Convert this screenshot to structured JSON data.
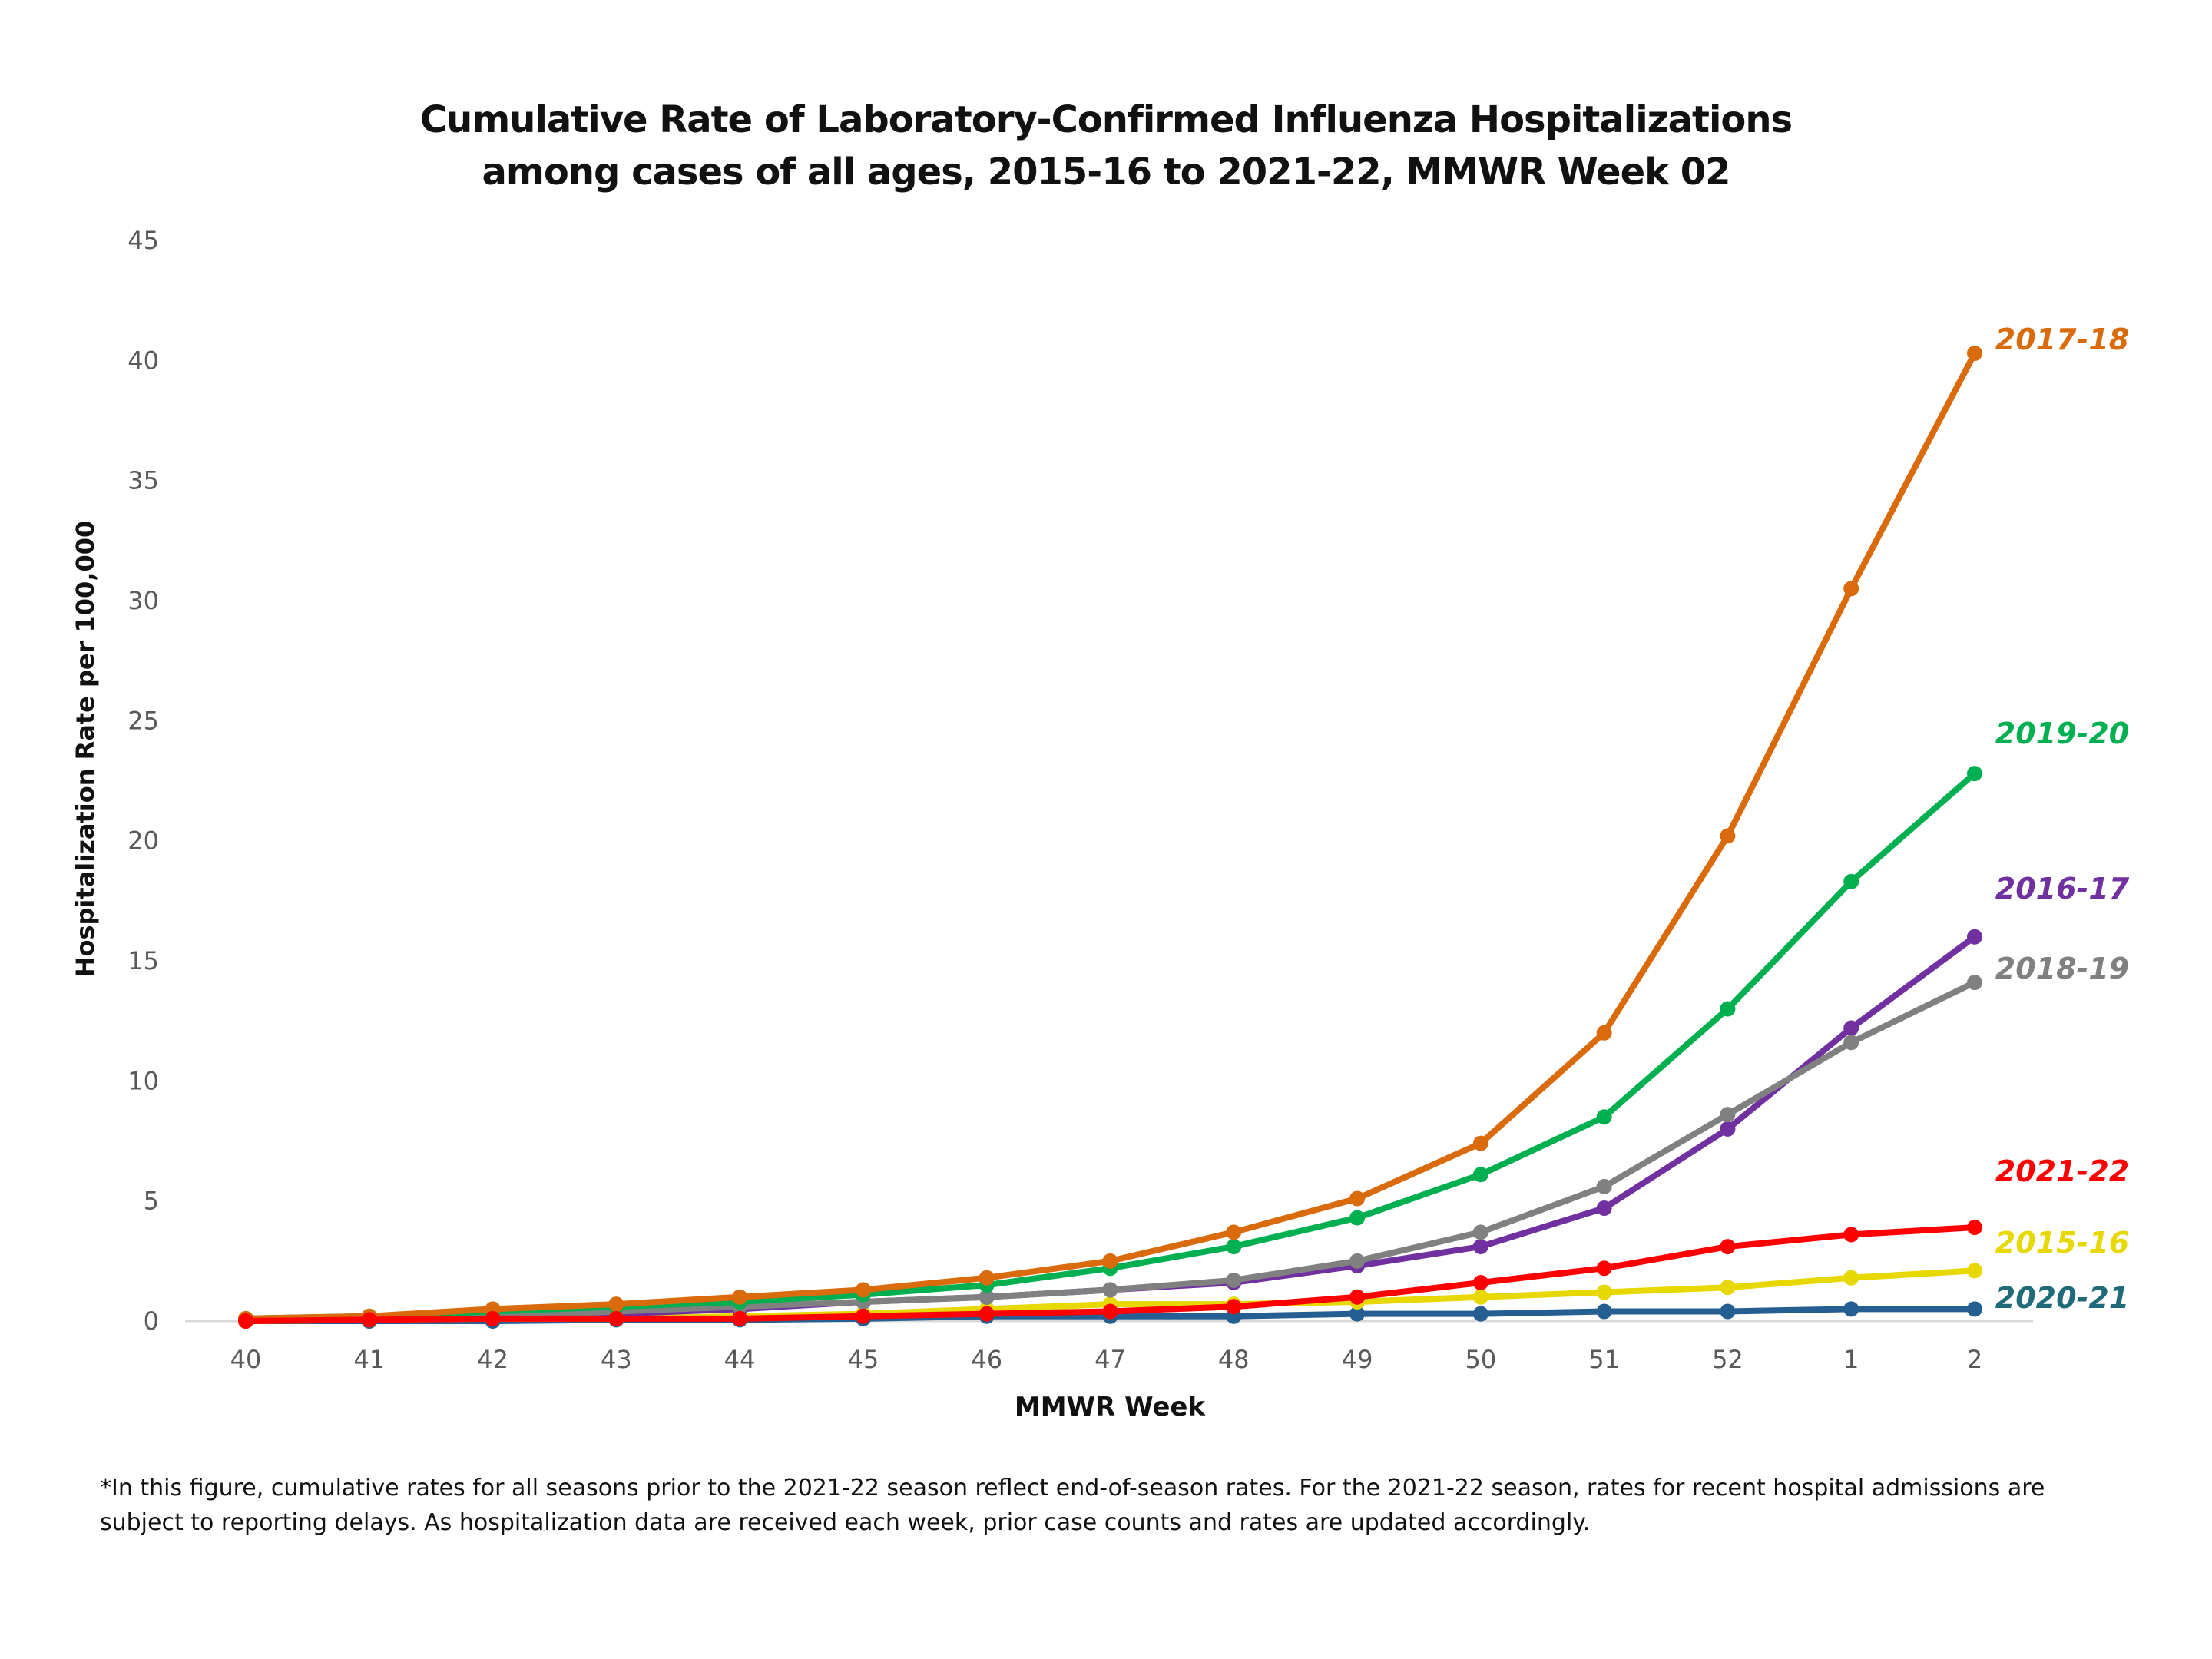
{
  "chart_data": {
    "type": "line",
    "title": "Cumulative Rate of Laboratory-Confirmed Influenza Hospitalizations",
    "subtitle": "among cases of all ages, 2015-16 to 2021-22, MMWR  Week 02",
    "xlabel": "MMWR Week",
    "ylabel": "Hospitalization  Rate per 100,000",
    "ylim": [
      0,
      45
    ],
    "yticks": [
      "0",
      "5",
      "10",
      "15",
      "20",
      "25",
      "30",
      "35",
      "40",
      "45"
    ],
    "categories": [
      "40",
      "41",
      "42",
      "43",
      "44",
      "45",
      "46",
      "47",
      "48",
      "49",
      "50",
      "51",
      "52",
      "1",
      "2"
    ],
    "grid": false,
    "legend": "direct labels at line ends (right)",
    "series": [
      {
        "name": "2020-21",
        "color": "#255E91",
        "label_color": "#1F6B7A",
        "values": [
          0.0,
          0.0,
          0.0,
          0.05,
          0.05,
          0.1,
          0.2,
          0.2,
          0.2,
          0.3,
          0.3,
          0.4,
          0.4,
          0.5,
          0.5
        ]
      },
      {
        "name": "2015-16",
        "color": "#E6D800",
        "label_color": "#E6D800",
        "values": [
          0.0,
          0.05,
          0.1,
          0.1,
          0.2,
          0.3,
          0.5,
          0.7,
          0.7,
          0.8,
          1.0,
          1.2,
          1.4,
          1.8,
          2.1
        ]
      },
      {
        "name": "2016-17",
        "color": "#7030A0",
        "label_color": "#7030A0",
        "values": [
          0.05,
          0.1,
          0.2,
          0.3,
          0.5,
          0.8,
          1.0,
          1.3,
          1.6,
          2.3,
          3.1,
          4.7,
          8.0,
          12.2,
          16.0
        ]
      },
      {
        "name": "2018-19",
        "color": "#808080",
        "label_color": "#808080",
        "values": [
          0.05,
          0.1,
          0.2,
          0.4,
          0.6,
          0.8,
          1.0,
          1.3,
          1.7,
          2.5,
          3.7,
          5.6,
          8.6,
          11.6,
          14.1
        ]
      },
      {
        "name": "2019-20",
        "color": "#00B050",
        "label_color": "#00B050",
        "values": [
          0.1,
          0.2,
          0.4,
          0.6,
          0.8,
          1.1,
          1.5,
          2.2,
          3.1,
          4.3,
          6.1,
          8.5,
          13.0,
          18.3,
          22.8
        ]
      },
      {
        "name": "2017-18",
        "color": "#D96B0C",
        "label_color": "#D96B0C",
        "values": [
          0.1,
          0.2,
          0.5,
          0.7,
          1.0,
          1.3,
          1.8,
          2.5,
          3.7,
          5.1,
          7.4,
          12.0,
          20.2,
          30.5,
          40.3
        ]
      },
      {
        "name": "2021-22",
        "color": "#FF0000",
        "label_color": "#FF0000",
        "values": [
          0.0,
          0.05,
          0.1,
          0.1,
          0.1,
          0.2,
          0.3,
          0.4,
          0.6,
          1.0,
          1.6,
          2.2,
          3.1,
          3.6,
          3.9
        ]
      }
    ],
    "footnote": "*In this figure, cumulative rates for all seasons prior to the 2021-22 season reflect end-of-season rates. For the 2021-22 season, rates for recent hospital admissions are subject to reporting delays. As hospitalization  data are received each week, prior case counts and rates are updated accordingly."
  }
}
